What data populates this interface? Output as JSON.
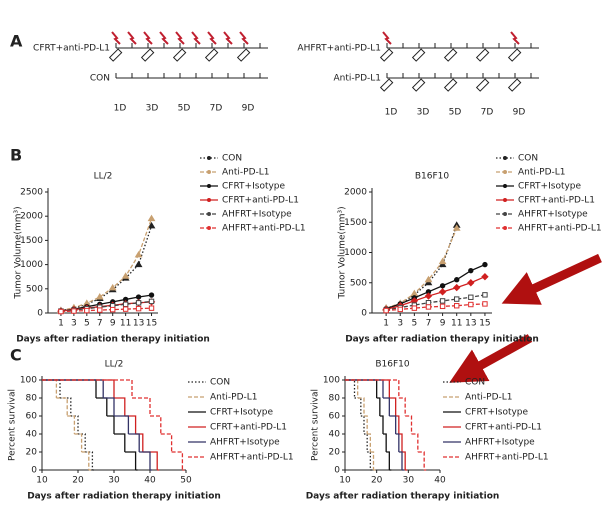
{
  "panels": [
    "A",
    "B",
    "C"
  ],
  "schematic": {
    "left": {
      "rows": [
        "CFRT+anti-PD-L1",
        "CON"
      ],
      "days": [
        "1D",
        "3D",
        "5D",
        "7D",
        "9D"
      ]
    },
    "right": {
      "rows": [
        "AHFRT+anti-PD-L1",
        "Anti-PD-L1"
      ],
      "days": [
        "1D",
        "3D",
        "5D",
        "7D",
        "9D"
      ]
    }
  },
  "chart_data": [
    {
      "type": "line",
      "title": "LL/2",
      "xlabel": "Days after radiation therapy initiation",
      "ylabel": "Tumor Volume(mm³)",
      "x": [
        1,
        3,
        5,
        7,
        9,
        11,
        13,
        15
      ],
      "xlim": [
        -1,
        16
      ],
      "xticks": [
        1,
        3,
        5,
        7,
        9,
        11,
        13,
        15
      ],
      "ylim": [
        0,
        2500
      ],
      "yticks": [
        0,
        500,
        1000,
        1500,
        2000,
        2500
      ],
      "series": [
        {
          "name": "CON",
          "color": "#222222",
          "style": "dotted",
          "marker": "triangle",
          "values": [
            50,
            100,
            180,
            300,
            480,
            720,
            1000,
            1800
          ]
        },
        {
          "name": "Anti-PD-L1",
          "color": "#c8a070",
          "style": "dashed",
          "marker": "triangle",
          "values": [
            50,
            110,
            200,
            330,
            520,
            760,
            1200,
            1950
          ]
        },
        {
          "name": "CFRT+Isotype",
          "color": "#111111",
          "style": "solid",
          "marker": "circle",
          "values": [
            40,
            80,
            130,
            180,
            230,
            280,
            330,
            370
          ]
        },
        {
          "name": "CFRT+anti-PD-L1",
          "color": "#d02020",
          "style": "solid",
          "marker": "diamond",
          "values": [
            40,
            70,
            100,
            130,
            160,
            190,
            210,
            230
          ]
        },
        {
          "name": "AHFRT+Isotype",
          "color": "#444444",
          "style": "dashed",
          "marker": "square",
          "values": [
            40,
            60,
            90,
            120,
            150,
            180,
            210,
            240
          ]
        },
        {
          "name": "AHFRT+anti-PD-L1",
          "color": "#e03030",
          "style": "dashed",
          "marker": "square",
          "values": [
            30,
            40,
            50,
            60,
            70,
            80,
            90,
            100
          ]
        }
      ]
    },
    {
      "type": "line",
      "title": "B16F10",
      "xlabel": "Days after radiation therapy initiation",
      "ylabel": "Tumor Volume(mm³)",
      "x": [
        1,
        3,
        5,
        7,
        9,
        11,
        13,
        15
      ],
      "xlim": [
        -1,
        16
      ],
      "xticks": [
        1,
        3,
        5,
        7,
        9,
        11,
        13,
        15
      ],
      "ylim": [
        0,
        2000
      ],
      "yticks": [
        0,
        500,
        1000,
        1500,
        2000
      ],
      "series": [
        {
          "name": "CON",
          "color": "#222222",
          "style": "dotted",
          "marker": "triangle",
          "values": [
            80,
            150,
            300,
            500,
            800,
            1450,
            null,
            null
          ]
        },
        {
          "name": "Anti-PD-L1",
          "color": "#c8a070",
          "style": "dashed",
          "marker": "triangle",
          "values": [
            80,
            160,
            320,
            550,
            850,
            1400,
            null,
            null
          ]
        },
        {
          "name": "CFRT+Isotype",
          "color": "#111111",
          "style": "solid",
          "marker": "circle",
          "values": [
            70,
            150,
            250,
            350,
            450,
            550,
            700,
            800
          ]
        },
        {
          "name": "CFRT+anti-PD-L1",
          "color": "#d02020",
          "style": "solid",
          "marker": "diamond",
          "values": [
            60,
            120,
            200,
            280,
            350,
            420,
            500,
            600
          ]
        },
        {
          "name": "AHFRT+Isotype",
          "color": "#444444",
          "style": "dashed",
          "marker": "square",
          "values": [
            50,
            90,
            130,
            170,
            200,
            230,
            260,
            300
          ]
        },
        {
          "name": "AHFRT+anti-PD-L1",
          "color": "#e03030",
          "style": "dashed",
          "marker": "square",
          "values": [
            40,
            60,
            80,
            100,
            110,
            120,
            140,
            150
          ]
        }
      ]
    },
    {
      "type": "step",
      "title": "LL/2",
      "xlabel": "Days after radiation therapy initiation",
      "ylabel": "Percent survival",
      "xlim": [
        10,
        50
      ],
      "xticks": [
        10,
        20,
        30,
        40,
        50
      ],
      "ylim": [
        0,
        100
      ],
      "yticks": [
        0,
        20,
        40,
        60,
        80,
        100
      ],
      "series": [
        {
          "name": "CON",
          "color": "#222222",
          "style": "dotted",
          "x": [
            10,
            15,
            18,
            20,
            22,
            24
          ],
          "values": [
            100,
            80,
            60,
            40,
            20,
            0
          ]
        },
        {
          "name": "Anti-PD-L1",
          "color": "#c8a070",
          "style": "dashed",
          "x": [
            10,
            14,
            17,
            19,
            21,
            23
          ],
          "values": [
            100,
            80,
            60,
            40,
            20,
            0
          ]
        },
        {
          "name": "CFRT+Isotype",
          "color": "#111111",
          "style": "solid",
          "x": [
            10,
            25,
            28,
            30,
            33,
            36
          ],
          "values": [
            100,
            80,
            60,
            40,
            20,
            0
          ]
        },
        {
          "name": "CFRT+anti-PD-L1",
          "color": "#d02020",
          "style": "solid",
          "x": [
            10,
            30,
            33,
            36,
            38,
            42
          ],
          "values": [
            100,
            80,
            60,
            40,
            20,
            0
          ]
        },
        {
          "name": "AHFRT+Isotype",
          "color": "#333366",
          "style": "solid",
          "x": [
            10,
            27,
            30,
            34,
            37,
            40
          ],
          "values": [
            100,
            80,
            60,
            40,
            20,
            0
          ]
        },
        {
          "name": "AHFRT+anti-PD-L1",
          "color": "#e03030",
          "style": "dashed",
          "x": [
            10,
            35,
            40,
            43,
            46,
            49
          ],
          "values": [
            100,
            80,
            60,
            40,
            20,
            0
          ]
        }
      ]
    },
    {
      "type": "step",
      "title": "B16F10",
      "xlabel": "Days after radiation therapy initiation",
      "ylabel": "Percent survival",
      "xlim": [
        10,
        40
      ],
      "xticks": [
        10,
        20,
        30,
        40
      ],
      "ylim": [
        0,
        100
      ],
      "yticks": [
        0,
        20,
        40,
        60,
        80,
        100
      ],
      "series": [
        {
          "name": "CON",
          "color": "#222222",
          "style": "dotted",
          "x": [
            10,
            13,
            15,
            16,
            17,
            18
          ],
          "values": [
            100,
            80,
            60,
            40,
            20,
            0
          ]
        },
        {
          "name": "Anti-PD-L1",
          "color": "#c8a070",
          "style": "dashed",
          "x": [
            10,
            14,
            16,
            17,
            18,
            19
          ],
          "values": [
            100,
            80,
            60,
            40,
            20,
            0
          ]
        },
        {
          "name": "CFRT+Isotype",
          "color": "#111111",
          "style": "solid",
          "x": [
            10,
            20,
            21,
            22,
            23,
            24
          ],
          "values": [
            100,
            80,
            60,
            40,
            20,
            0
          ]
        },
        {
          "name": "CFRT+anti-PD-L1",
          "color": "#d02020",
          "style": "solid",
          "x": [
            10,
            24,
            26,
            27,
            28,
            29
          ],
          "values": [
            100,
            80,
            60,
            40,
            20,
            0
          ]
        },
        {
          "name": "AHFRT+Isotype",
          "color": "#333366",
          "style": "solid",
          "x": [
            10,
            22,
            24,
            26,
            27,
            28
          ],
          "values": [
            100,
            80,
            60,
            40,
            20,
            0
          ]
        },
        {
          "name": "AHFRT+anti-PD-L1",
          "color": "#e03030",
          "style": "dashed",
          "x": [
            10,
            27,
            29,
            31,
            33,
            35
          ],
          "values": [
            100,
            80,
            60,
            40,
            20,
            0
          ]
        }
      ]
    }
  ]
}
